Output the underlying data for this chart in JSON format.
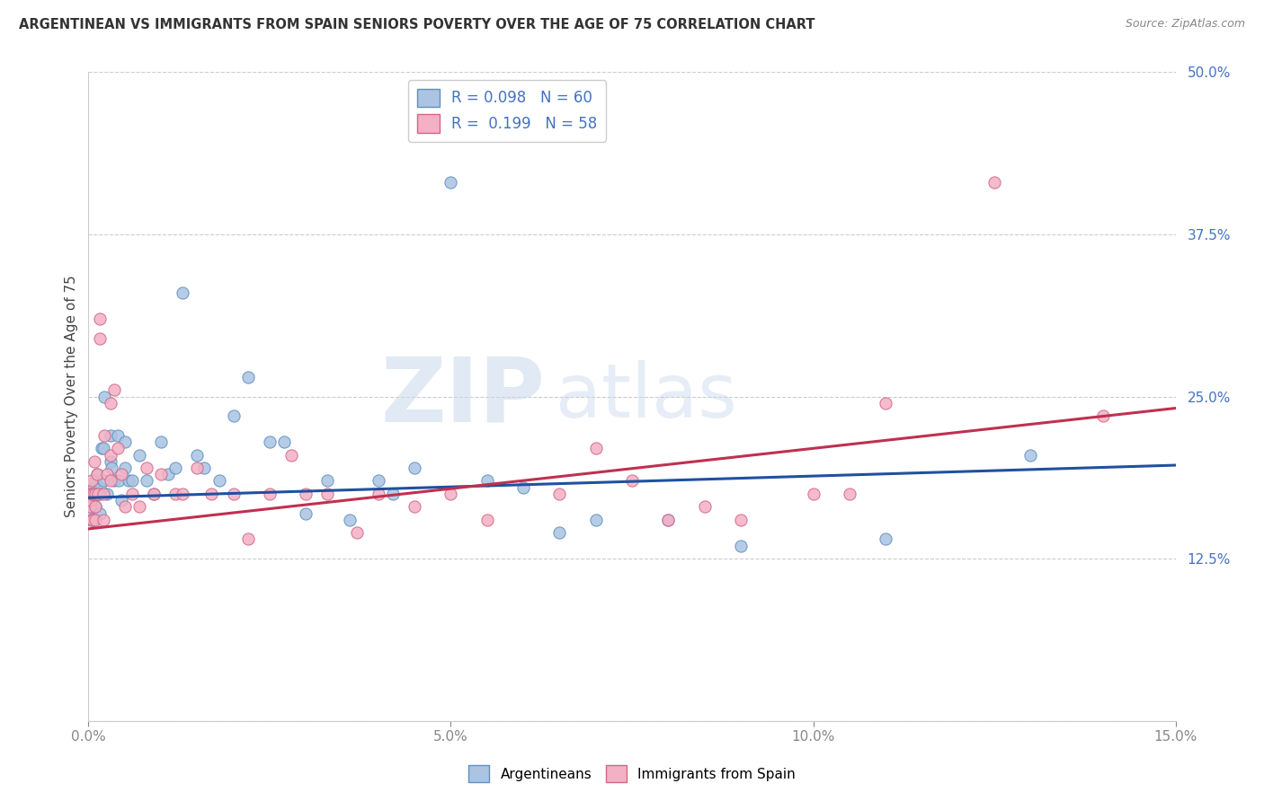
{
  "title": "ARGENTINEAN VS IMMIGRANTS FROM SPAIN SENIORS POVERTY OVER THE AGE OF 75 CORRELATION CHART",
  "source": "Source: ZipAtlas.com",
  "ylabel": "Seniors Poverty Over the Age of 75",
  "xlim": [
    0.0,
    0.15
  ],
  "ylim": [
    0.0,
    0.5
  ],
  "xticks": [
    0.0,
    0.05,
    0.1,
    0.15
  ],
  "xtick_labels": [
    "0.0%",
    "5.0%",
    "10.0%",
    "15.0%"
  ],
  "yticks": [
    0.0,
    0.125,
    0.25,
    0.375,
    0.5
  ],
  "ytick_labels": [
    "",
    "12.5%",
    "25.0%",
    "37.5%",
    "50.0%"
  ],
  "blue_R": 0.098,
  "blue_N": 60,
  "pink_R": 0.199,
  "pink_N": 58,
  "blue_color": "#aac4e2",
  "blue_edge_color": "#6090c0",
  "pink_color": "#f4b0c4",
  "pink_edge_color": "#d06888",
  "blue_line_color": "#2050a0",
  "pink_line_color": "#c03050",
  "marker_size": 90,
  "tick_color": "#4472c4",
  "title_color": "#333333",
  "source_color": "#888888",
  "grid_color": "#cccccc",
  "watermark_zip": "ZIP",
  "watermark_atlas": "atlas",
  "background_color": "#ffffff",
  "blue_x": [
    0.0003,
    0.0003,
    0.0005,
    0.0005,
    0.0005,
    0.0007,
    0.0008,
    0.001,
    0.001,
    0.001,
    0.0012,
    0.0013,
    0.0015,
    0.0015,
    0.0016,
    0.0018,
    0.002,
    0.002,
    0.0022,
    0.0025,
    0.003,
    0.003,
    0.0032,
    0.0035,
    0.004,
    0.0042,
    0.0045,
    0.005,
    0.005,
    0.0055,
    0.006,
    0.007,
    0.008,
    0.009,
    0.01,
    0.011,
    0.012,
    0.013,
    0.015,
    0.016,
    0.018,
    0.02,
    0.022,
    0.025,
    0.027,
    0.03,
    0.033,
    0.036,
    0.04,
    0.042,
    0.045,
    0.05,
    0.055,
    0.06,
    0.065,
    0.07,
    0.08,
    0.09,
    0.11,
    0.13
  ],
  "blue_y": [
    0.175,
    0.16,
    0.17,
    0.155,
    0.165,
    0.18,
    0.155,
    0.185,
    0.165,
    0.175,
    0.19,
    0.175,
    0.16,
    0.18,
    0.175,
    0.21,
    0.185,
    0.21,
    0.25,
    0.175,
    0.22,
    0.2,
    0.195,
    0.185,
    0.22,
    0.185,
    0.17,
    0.195,
    0.215,
    0.185,
    0.185,
    0.205,
    0.185,
    0.175,
    0.215,
    0.19,
    0.195,
    0.33,
    0.205,
    0.195,
    0.185,
    0.235,
    0.265,
    0.215,
    0.215,
    0.16,
    0.185,
    0.155,
    0.185,
    0.175,
    0.195,
    0.415,
    0.185,
    0.18,
    0.145,
    0.155,
    0.155,
    0.135,
    0.14,
    0.205
  ],
  "pink_x": [
    0.0002,
    0.0002,
    0.0003,
    0.0004,
    0.0005,
    0.0005,
    0.0006,
    0.0007,
    0.0008,
    0.001,
    0.001,
    0.001,
    0.0012,
    0.0013,
    0.0015,
    0.0016,
    0.002,
    0.002,
    0.0022,
    0.0025,
    0.003,
    0.003,
    0.003,
    0.0035,
    0.004,
    0.0045,
    0.005,
    0.006,
    0.007,
    0.008,
    0.009,
    0.01,
    0.012,
    0.013,
    0.015,
    0.017,
    0.02,
    0.022,
    0.025,
    0.028,
    0.03,
    0.033,
    0.037,
    0.04,
    0.045,
    0.05,
    0.055,
    0.065,
    0.07,
    0.075,
    0.08,
    0.085,
    0.09,
    0.1,
    0.105,
    0.11,
    0.125,
    0.14
  ],
  "pink_y": [
    0.175,
    0.165,
    0.17,
    0.185,
    0.175,
    0.155,
    0.155,
    0.175,
    0.2,
    0.175,
    0.165,
    0.155,
    0.19,
    0.175,
    0.295,
    0.31,
    0.175,
    0.155,
    0.22,
    0.19,
    0.245,
    0.205,
    0.185,
    0.255,
    0.21,
    0.19,
    0.165,
    0.175,
    0.165,
    0.195,
    0.175,
    0.19,
    0.175,
    0.175,
    0.195,
    0.175,
    0.175,
    0.14,
    0.175,
    0.205,
    0.175,
    0.175,
    0.145,
    0.175,
    0.165,
    0.175,
    0.155,
    0.175,
    0.21,
    0.185,
    0.155,
    0.165,
    0.155,
    0.175,
    0.175,
    0.245,
    0.415,
    0.235
  ]
}
